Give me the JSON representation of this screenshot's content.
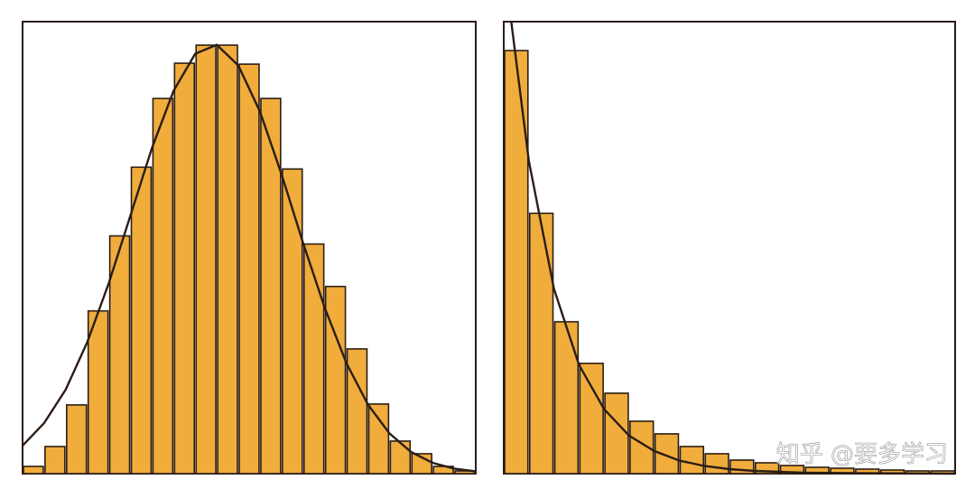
{
  "chart_data": [
    {
      "type": "histogram",
      "bins": [
        0,
        1,
        2,
        3,
        4,
        5,
        6,
        7,
        8,
        9,
        10,
        11,
        12,
        13,
        14,
        15,
        16,
        17,
        18,
        19,
        20,
        21
      ],
      "values": [
        1.6,
        6,
        15.2,
        36,
        52.6,
        67.8,
        83,
        90.8,
        94.8,
        94.8,
        90.6,
        83,
        67.4,
        50.8,
        41.4,
        27.6,
        15.4,
        7.2,
        4.4,
        1.6,
        0.6
      ],
      "color": "#f0ad3c",
      "xlim": [
        0,
        21
      ],
      "ylim": [
        0,
        100
      ],
      "curve": {
        "color": "#2b1d16",
        "x": [
          0,
          1,
          2,
          3,
          4,
          5,
          6,
          7,
          8,
          9,
          10,
          11,
          12,
          13,
          14,
          15,
          16,
          17,
          18,
          19,
          20,
          21
        ],
        "values": [
          6.2,
          11.2,
          18.6,
          29.1,
          42.2,
          57.1,
          72.1,
          84.7,
          92.9,
          94.9,
          90.3,
          80.1,
          66.2,
          51.0,
          36.7,
          24.5,
          15.3,
          8.9,
          4.8,
          2.4,
          1.1,
          0.5
        ]
      }
    },
    {
      "type": "histogram",
      "bins": [
        0,
        1,
        2,
        3,
        4,
        5,
        6,
        7,
        8,
        9,
        10,
        11,
        12,
        13,
        14,
        15,
        16,
        17,
        18
      ],
      "values": [
        93.6,
        57.6,
        33.6,
        24.4,
        17.8,
        11.6,
        8.8,
        6,
        4.4,
        3,
        2.4,
        1.8,
        1.4,
        1.2,
        1,
        0.8,
        0.6,
        0.6
      ],
      "color": "#f0ad3c",
      "xlim": [
        0,
        18
      ],
      "ylim": [
        0,
        100
      ],
      "curve": {
        "color": "#2b1d16",
        "x": [
          0.3,
          1,
          2,
          3,
          4,
          5,
          6,
          7,
          8,
          9,
          10,
          12,
          14,
          18
        ],
        "values": [
          100,
          69.2,
          40.9,
          24.1,
          14.3,
          8.4,
          5.0,
          2.9,
          1.7,
          1.0,
          0.6,
          0.2,
          0.1,
          0
        ]
      }
    }
  ],
  "watermark": "知乎 @要多学习"
}
